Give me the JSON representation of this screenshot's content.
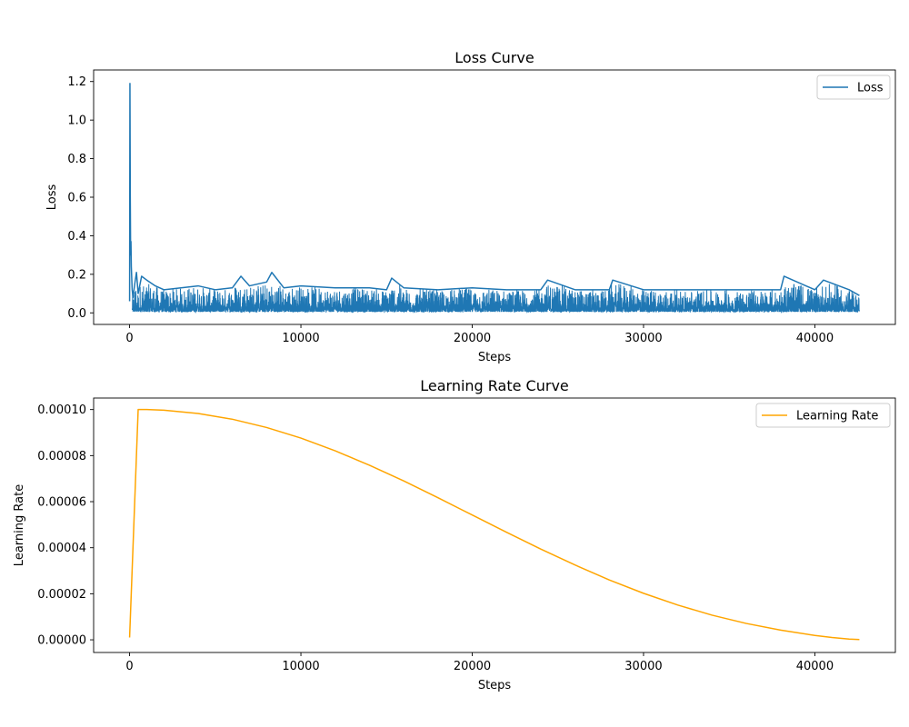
{
  "chart_data": [
    {
      "type": "line",
      "title": "Loss Curve",
      "xlabel": "Steps",
      "ylabel": "Loss",
      "xlim": [
        -2100,
        44700
      ],
      "ylim": [
        -0.06,
        1.26
      ],
      "xticks": [
        0,
        10000,
        20000,
        30000,
        40000
      ],
      "xtick_labels": [
        "0",
        "10000",
        "20000",
        "30000",
        "40000"
      ],
      "yticks": [
        0.0,
        0.2,
        0.4,
        0.6,
        0.8,
        1.0,
        1.2
      ],
      "ytick_labels": [
        "0.0",
        "0.2",
        "0.4",
        "0.6",
        "0.8",
        "1.0",
        "1.2"
      ],
      "grid": false,
      "legend_position": "top-right",
      "series": [
        {
          "name": "Loss",
          "color": "#1f77b4",
          "x": [
            0,
            20,
            40,
            60,
            80,
            100,
            150,
            200,
            300,
            400,
            500,
            700,
            1000,
            1500,
            2000,
            3000,
            4000,
            5000,
            6000,
            6500,
            7000,
            8000,
            8300,
            9000,
            10000,
            12000,
            14000,
            15000,
            15300,
            16000,
            18000,
            20000,
            22000,
            24000,
            24400,
            26000,
            28000,
            28200,
            30000,
            32000,
            34000,
            36000,
            38000,
            38200,
            40000,
            40500,
            42000,
            42600
          ],
          "y": [
            0.06,
            1.19,
            0.6,
            0.3,
            0.37,
            0.24,
            0.12,
            0.08,
            0.15,
            0.21,
            0.1,
            0.19,
            0.17,
            0.14,
            0.12,
            0.13,
            0.14,
            0.12,
            0.13,
            0.19,
            0.14,
            0.16,
            0.21,
            0.13,
            0.14,
            0.13,
            0.13,
            0.12,
            0.18,
            0.13,
            0.12,
            0.13,
            0.12,
            0.12,
            0.17,
            0.12,
            0.12,
            0.17,
            0.12,
            0.12,
            0.12,
            0.12,
            0.12,
            0.19,
            0.12,
            0.17,
            0.12,
            0.09
          ]
        }
      ],
      "noise_band": {
        "lower": 0.0,
        "upper_typical": 0.12
      }
    },
    {
      "type": "line",
      "title": "Learning Rate Curve",
      "xlabel": "Steps",
      "ylabel": "Learning Rate",
      "xlim": [
        -2100,
        44700
      ],
      "ylim": [
        -5.5e-06,
        0.000105
      ],
      "xticks": [
        0,
        10000,
        20000,
        30000,
        40000
      ],
      "xtick_labels": [
        "0",
        "10000",
        "20000",
        "30000",
        "40000"
      ],
      "yticks": [
        0,
        2e-05,
        4e-05,
        6e-05,
        8e-05,
        0.0001
      ],
      "ytick_labels": [
        "0.00000",
        "0.00002",
        "0.00004",
        "0.00006",
        "0.00008",
        "0.00010"
      ],
      "grid": false,
      "legend_position": "top-right",
      "series": [
        {
          "name": "Learning Rate",
          "color": "#ffa500",
          "x": [
            0,
            500,
            1000,
            2000,
            4000,
            6000,
            8000,
            10000,
            12000,
            14000,
            16000,
            18000,
            20000,
            22000,
            24000,
            26000,
            28000,
            30000,
            32000,
            34000,
            36000,
            38000,
            40000,
            41000,
            42000,
            42600
          ],
          "y": [
            1e-06,
            0.0001,
            0.0001,
            9.97e-05,
            9.83e-05,
            9.58e-05,
            9.22e-05,
            8.76e-05,
            8.21e-05,
            7.58e-05,
            6.9e-05,
            6.17e-05,
            5.42e-05,
            4.67e-05,
            3.94e-05,
            3.25e-05,
            2.6e-05,
            2.02e-05,
            1.51e-05,
            1.07e-05,
            7.1e-06,
            4.2e-06,
            1.9e-06,
            1e-06,
            3e-07,
            1e-07
          ]
        }
      ]
    }
  ]
}
